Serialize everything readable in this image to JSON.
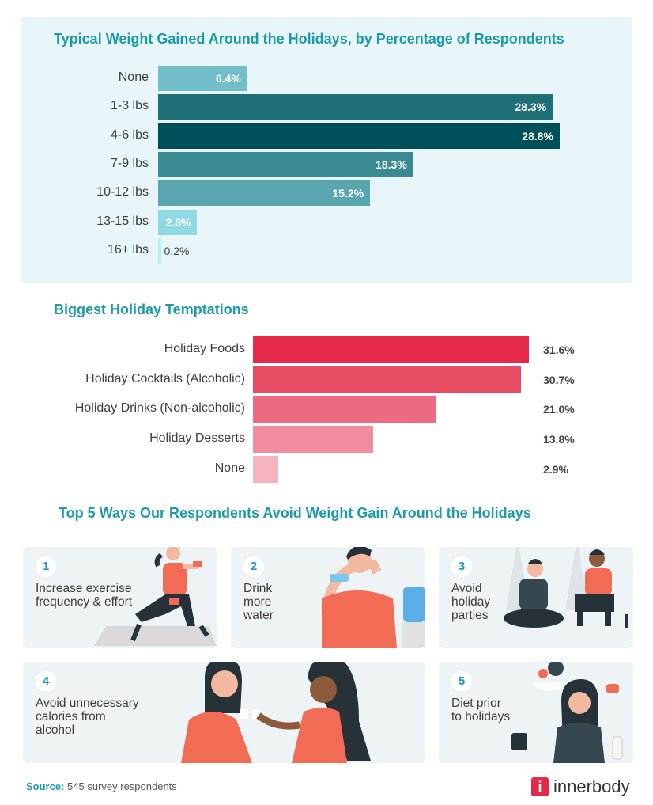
{
  "chart_data": [
    {
      "type": "bar",
      "orientation": "horizontal",
      "title": "Typical Weight Gained Around the Holidays, by Percentage of Respondents",
      "categories": [
        "None",
        "1-3 lbs",
        "4-6 lbs",
        "7-9 lbs",
        "10-12 lbs",
        "13-15 lbs",
        "16+ lbs"
      ],
      "values": [
        6.4,
        28.3,
        28.8,
        18.3,
        15.2,
        2.8,
        0.2
      ],
      "data_labels": [
        "6.4%",
        "28.3%",
        "28.8%",
        "18.3%",
        "15.2%",
        "2.8%",
        "0.2%"
      ],
      "colors": [
        "#72bec9",
        "#1f6f78",
        "#00505c",
        "#3a8a92",
        "#5aa6b0",
        "#8ed9e4",
        "#b8eef5"
      ],
      "grid": false
    },
    {
      "type": "bar",
      "orientation": "horizontal",
      "title": "Biggest Holiday Temptations",
      "categories": [
        "Holiday Foods",
        "Holiday Cocktails (Alcoholic)",
        "Holiday Drinks (Non-alcoholic)",
        "Holiday Desserts",
        "None"
      ],
      "values": [
        31.6,
        30.7,
        21.0,
        13.8,
        2.9
      ],
      "data_labels": [
        "31.6%",
        "30.7%",
        "21.0%",
        "13.8%",
        "2.9%"
      ],
      "colors": [
        "#e5294a",
        "#e84c65",
        "#ec6b80",
        "#f28da0",
        "#f6b3bf"
      ],
      "grid": false
    }
  ],
  "ways": {
    "title": "Top 5 Ways Our Respondents Avoid Weight Gain Around the Holidays",
    "items": [
      {
        "num": "1",
        "text": "Increase exercise\nfrequency & effort"
      },
      {
        "num": "2",
        "text": "Drink\nmore\nwater"
      },
      {
        "num": "3",
        "text": "Avoid\nholiday\nparties"
      },
      {
        "num": "4",
        "text": "Avoid unnecessary\ncalories from\nalcohol"
      },
      {
        "num": "5",
        "text": "Diet prior\nto holidays"
      }
    ]
  },
  "footer": {
    "source_label": "Source:",
    "source_text": "545 survey respondents",
    "logo_text": "innerbody",
    "logo_mark": "i"
  },
  "colors": {
    "accent": "#1d9aa8",
    "brand": "#e5294a",
    "card_bg": "#eef4f6",
    "panel_bg": "#e8f6f9"
  }
}
